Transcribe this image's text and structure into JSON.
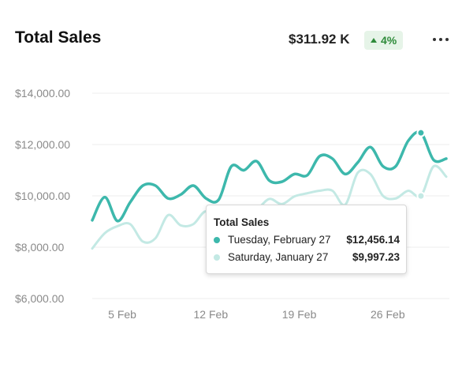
{
  "header": {
    "title": "Total Sales",
    "total": "$311.92 K",
    "change": "4%"
  },
  "colors": {
    "primary": "#3db8ac",
    "secondary": "#c3e9e4",
    "badge_bg": "#e6f4e8",
    "badge_text": "#2e8b3a"
  },
  "icons": {
    "more": "more-horizontal-icon",
    "change": "triangle-up-icon"
  },
  "tooltip": {
    "title": "Total Sales",
    "rows": [
      {
        "label": "Tuesday, February 27",
        "value": "$12,456.14"
      },
      {
        "label": "Saturday, January 27",
        "value": "$9,997.23"
      }
    ]
  },
  "chart_data": {
    "type": "line",
    "y_ticks": [
      "$14,000.00",
      "$12,000.00",
      "$10,000.00",
      "$8,000.00",
      "$6,000.00"
    ],
    "x_ticks": [
      "5 Feb",
      "12 Feb",
      "19 Feb",
      "26 Feb"
    ],
    "ylim": [
      6000,
      14000
    ],
    "grid": true,
    "series": [
      {
        "values": [
          9050,
          9950,
          9020,
          9750,
          10400,
          10400,
          9900,
          10050,
          10400,
          9900,
          9850,
          11150,
          11000,
          11350,
          10600,
          10550,
          10850,
          10800,
          11550,
          11450,
          10850,
          11300,
          11900,
          11150,
          11150,
          12150,
          12456.14,
          11400,
          11450
        ]
      },
      {
        "values": [
          7950,
          8550,
          8820,
          8900,
          8220,
          8350,
          9250,
          8850,
          8900,
          9400,
          8900,
          9200,
          9250,
          9450,
          9880,
          9680,
          9980,
          10100,
          10200,
          10200,
          9650,
          10900,
          10850,
          10000,
          9900,
          10200,
          9997.23,
          11150,
          10750
        ]
      }
    ]
  }
}
